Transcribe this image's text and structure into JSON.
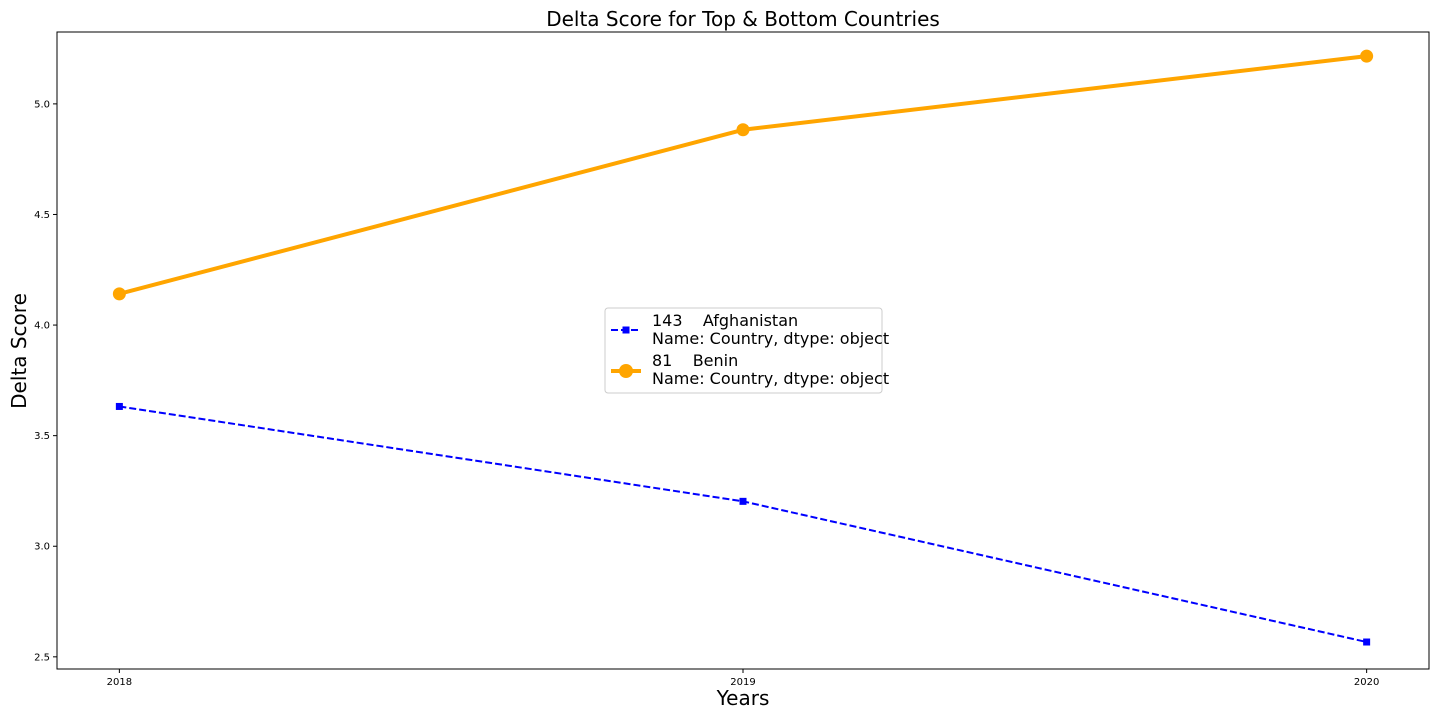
{
  "chart_data": {
    "type": "line",
    "title": "Delta Score for Top & Bottom Countries",
    "xlabel": "Years",
    "ylabel": "Delta Score",
    "x": [
      "2018",
      "2019",
      "2020"
    ],
    "xlim": [
      2017.9,
      2020.1
    ],
    "ylim": [
      2.445,
      5.325
    ],
    "yticks": [
      "2.5",
      "3.0",
      "3.5",
      "4.0",
      "4.5",
      "5.0"
    ],
    "grid": false,
    "legend_position": "center",
    "series": [
      {
        "name": "143    Afghanistan",
        "name_line2": "Name: Country, dtype: object",
        "values": [
          3.632,
          3.203,
          2.567
        ],
        "color": "#0000ff",
        "line_style": "dashed",
        "marker": "square"
      },
      {
        "name": "81    Benin",
        "name_line2": "Name: Country, dtype: object",
        "values": [
          4.141,
          4.883,
          5.216
        ],
        "color": "#ffa500",
        "line_style": "solid",
        "marker": "circle"
      }
    ]
  }
}
